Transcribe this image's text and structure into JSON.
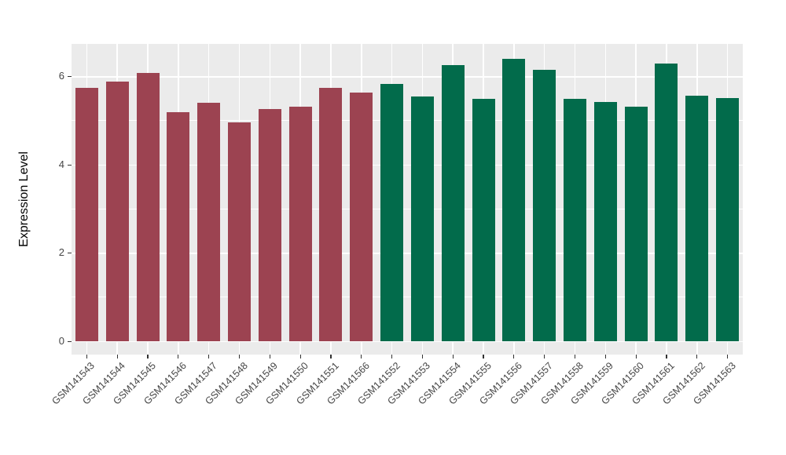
{
  "chart_data": {
    "type": "bar",
    "title": "",
    "ylabel": "Expression Level",
    "xlabel": "",
    "legend_position": "none",
    "grid": true,
    "ylim": [
      -0.31,
      6.73
    ],
    "yticks": [
      0,
      2,
      4,
      6
    ],
    "yticks_minor": [
      1,
      3,
      5
    ],
    "panel_bg": "#EBEBEB",
    "grid_color": "#FFFFFF",
    "axis_text_color": "#454545",
    "axis_title_color": "#000000",
    "group_colors": {
      "maroon": "#9C4351",
      "green": "#026B4B"
    },
    "bars": [
      {
        "label": "GSM141543",
        "value": 5.73,
        "group": "maroon"
      },
      {
        "label": "GSM141544",
        "value": 5.88,
        "group": "maroon"
      },
      {
        "label": "GSM141545",
        "value": 6.08,
        "group": "maroon"
      },
      {
        "label": "GSM141546",
        "value": 5.19,
        "group": "maroon"
      },
      {
        "label": "GSM141547",
        "value": 5.4,
        "group": "maroon"
      },
      {
        "label": "GSM141548",
        "value": 4.95,
        "group": "maroon"
      },
      {
        "label": "GSM141549",
        "value": 5.25,
        "group": "maroon"
      },
      {
        "label": "GSM141550",
        "value": 5.31,
        "group": "maroon"
      },
      {
        "label": "GSM141551",
        "value": 5.73,
        "group": "maroon"
      },
      {
        "label": "GSM141566",
        "value": 5.63,
        "group": "maroon"
      },
      {
        "label": "GSM141552",
        "value": 5.83,
        "group": "green"
      },
      {
        "label": "GSM141553",
        "value": 5.54,
        "group": "green"
      },
      {
        "label": "GSM141554",
        "value": 6.25,
        "group": "green"
      },
      {
        "label": "GSM141555",
        "value": 5.49,
        "group": "green"
      },
      {
        "label": "GSM141556",
        "value": 6.39,
        "group": "green"
      },
      {
        "label": "GSM141557",
        "value": 6.15,
        "group": "green"
      },
      {
        "label": "GSM141558",
        "value": 5.49,
        "group": "green"
      },
      {
        "label": "GSM141559",
        "value": 5.42,
        "group": "green"
      },
      {
        "label": "GSM141560",
        "value": 5.3,
        "group": "green"
      },
      {
        "label": "GSM141561",
        "value": 6.29,
        "group": "green"
      },
      {
        "label": "GSM141562",
        "value": 5.55,
        "group": "green"
      },
      {
        "label": "GSM141563",
        "value": 5.5,
        "group": "green"
      }
    ]
  }
}
